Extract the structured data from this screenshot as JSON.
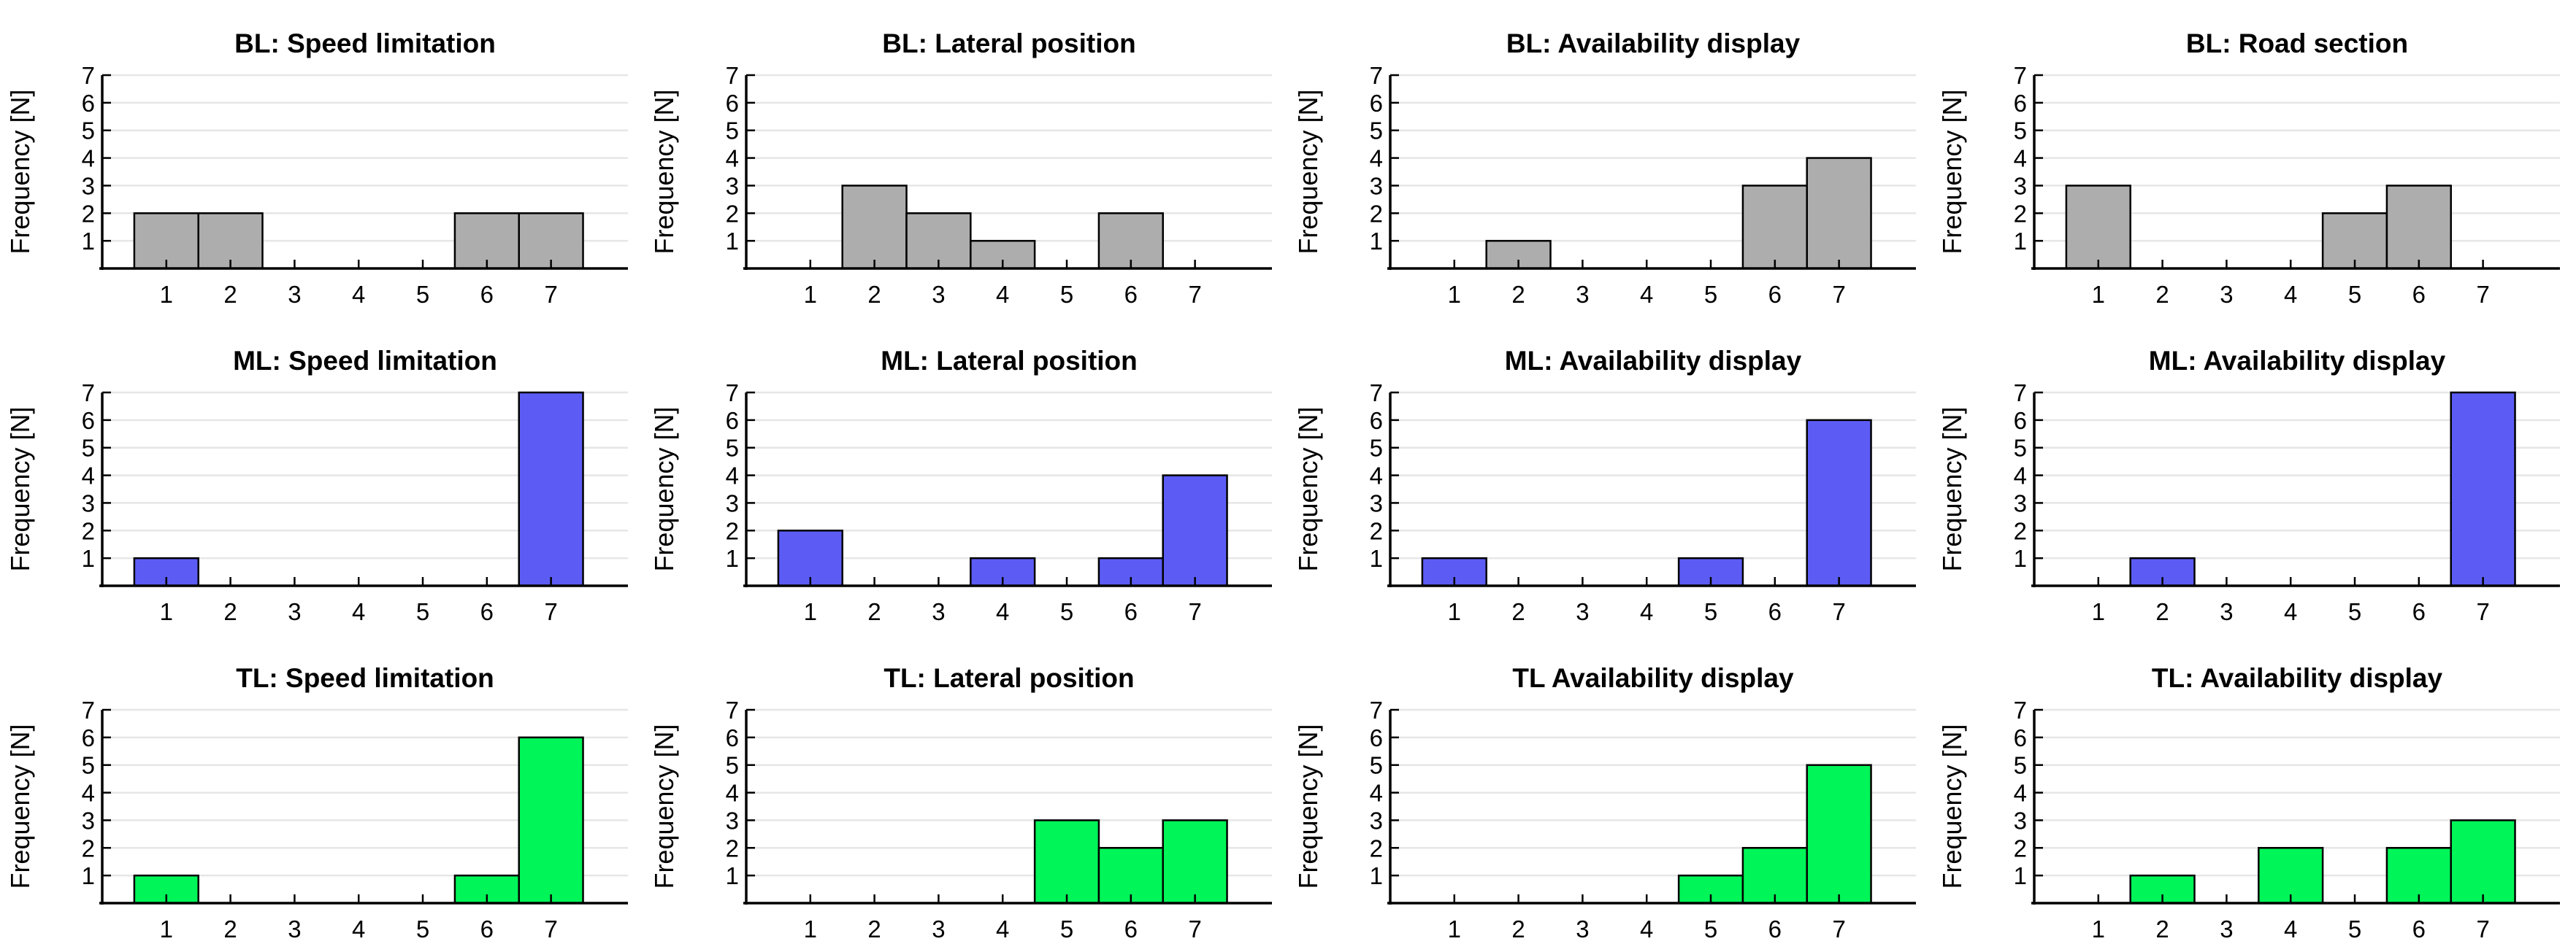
{
  "figure": {
    "ylabel": "Frequency [N]",
    "ylim": [
      0,
      7
    ],
    "yticks": [
      1,
      2,
      3,
      4,
      5,
      6,
      7
    ],
    "xticks": [
      1,
      2,
      3,
      4,
      5,
      6,
      7
    ],
    "grid": "horizontal",
    "gridline_color": "#E6E6E6",
    "axis_color": "#000000",
    "background_color": "#FFFFFF",
    "rows": [
      {
        "name": "BL",
        "color": "#ADADAD"
      },
      {
        "name": "ML",
        "color": "#5C5CF5"
      },
      {
        "name": "TL",
        "color": "#00F558"
      }
    ]
  },
  "chart_data": [
    {
      "type": "bar",
      "title": "BL: Speed limitation",
      "row": "BL",
      "color": "#ADADAD",
      "categories": [
        1,
        2,
        3,
        4,
        5,
        6,
        7
      ],
      "values": [
        2,
        2,
        0,
        0,
        0,
        2,
        2
      ],
      "xlabel": "",
      "ylabel": "Frequency [N]",
      "ylim": [
        0,
        7
      ]
    },
    {
      "type": "bar",
      "title": "BL: Lateral position",
      "row": "BL",
      "color": "#ADADAD",
      "categories": [
        1,
        2,
        3,
        4,
        5,
        6,
        7
      ],
      "values": [
        0,
        3,
        2,
        1,
        0,
        2,
        0
      ],
      "xlabel": "",
      "ylabel": "Frequency [N]",
      "ylim": [
        0,
        7
      ]
    },
    {
      "type": "bar",
      "title": "BL: Availability display",
      "row": "BL",
      "color": "#ADADAD",
      "categories": [
        1,
        2,
        3,
        4,
        5,
        6,
        7
      ],
      "values": [
        0,
        1,
        0,
        0,
        0,
        3,
        4
      ],
      "xlabel": "",
      "ylabel": "Frequency [N]",
      "ylim": [
        0,
        7
      ]
    },
    {
      "type": "bar",
      "title": "BL: Road section",
      "row": "BL",
      "color": "#ADADAD",
      "categories": [
        1,
        2,
        3,
        4,
        5,
        6,
        7
      ],
      "values": [
        3,
        0,
        0,
        0,
        2,
        3,
        0
      ],
      "xlabel": "",
      "ylabel": "Frequency [N]",
      "ylim": [
        0,
        7
      ]
    },
    {
      "type": "bar",
      "title": "ML: Speed limitation",
      "row": "ML",
      "color": "#5C5CF5",
      "categories": [
        1,
        2,
        3,
        4,
        5,
        6,
        7
      ],
      "values": [
        1,
        0,
        0,
        0,
        0,
        0,
        7
      ],
      "xlabel": "",
      "ylabel": "Frequency [N]",
      "ylim": [
        0,
        7
      ]
    },
    {
      "type": "bar",
      "title": "ML: Lateral position",
      "row": "ML",
      "color": "#5C5CF5",
      "categories": [
        1,
        2,
        3,
        4,
        5,
        6,
        7
      ],
      "values": [
        2,
        0,
        0,
        1,
        0,
        1,
        4
      ],
      "xlabel": "",
      "ylabel": "Frequency [N]",
      "ylim": [
        0,
        7
      ]
    },
    {
      "type": "bar",
      "title": "ML: Availability display",
      "row": "ML",
      "color": "#5C5CF5",
      "categories": [
        1,
        2,
        3,
        4,
        5,
        6,
        7
      ],
      "values": [
        1,
        0,
        0,
        0,
        1,
        0,
        6
      ],
      "xlabel": "",
      "ylabel": "Frequency [N]",
      "ylim": [
        0,
        7
      ]
    },
    {
      "type": "bar",
      "title": "ML: Availability display",
      "row": "ML",
      "color": "#5C5CF5",
      "categories": [
        1,
        2,
        3,
        4,
        5,
        6,
        7
      ],
      "values": [
        0,
        1,
        0,
        0,
        0,
        0,
        7
      ],
      "xlabel": "",
      "ylabel": "Frequency [N]",
      "ylim": [
        0,
        7
      ]
    },
    {
      "type": "bar",
      "title": "TL: Speed limitation",
      "row": "TL",
      "color": "#00F558",
      "categories": [
        1,
        2,
        3,
        4,
        5,
        6,
        7
      ],
      "values": [
        1,
        0,
        0,
        0,
        0,
        1,
        6
      ],
      "xlabel": "",
      "ylabel": "Frequency [N]",
      "ylim": [
        0,
        7
      ]
    },
    {
      "type": "bar",
      "title": "TL: Lateral position",
      "row": "TL",
      "color": "#00F558",
      "categories": [
        1,
        2,
        3,
        4,
        5,
        6,
        7
      ],
      "values": [
        0,
        0,
        0,
        0,
        3,
        2,
        3
      ],
      "xlabel": "",
      "ylabel": "Frequency [N]",
      "ylim": [
        0,
        7
      ]
    },
    {
      "type": "bar",
      "title": "TL Availability display",
      "row": "TL",
      "color": "#00F558",
      "categories": [
        1,
        2,
        3,
        4,
        5,
        6,
        7
      ],
      "values": [
        0,
        0,
        0,
        0,
        1,
        2,
        5
      ],
      "xlabel": "",
      "ylabel": "Frequency [N]",
      "ylim": [
        0,
        7
      ]
    },
    {
      "type": "bar",
      "title": "TL: Availability display",
      "row": "TL",
      "color": "#00F558",
      "categories": [
        1,
        2,
        3,
        4,
        5,
        6,
        7
      ],
      "values": [
        0,
        1,
        0,
        2,
        0,
        2,
        3
      ],
      "xlabel": "",
      "ylabel": "Frequency [N]",
      "ylim": [
        0,
        7
      ]
    }
  ]
}
